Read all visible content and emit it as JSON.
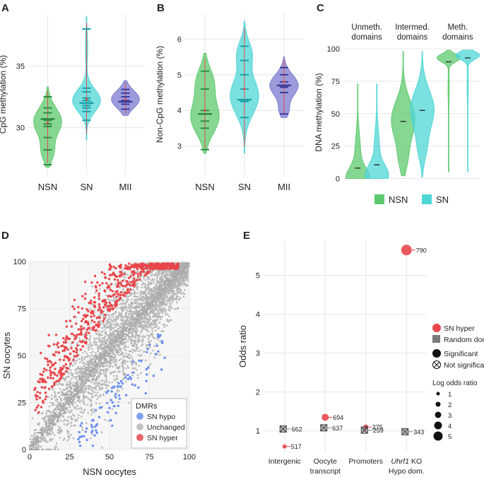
{
  "figure": {
    "description_note": ""
  },
  "chart_data": [
    {
      "panel": "A",
      "type": "violin",
      "ylabel": "CpG methylation (%)",
      "ylim": [
        26.2,
        39.2
      ],
      "yticks": [
        30,
        35
      ],
      "categories": [
        "NSN",
        "SN",
        "MII"
      ],
      "colors": [
        "#5ec96e",
        "#4fd6d6",
        "#7b7bd0"
      ],
      "medians": [
        30.7,
        32.0,
        32.1
      ],
      "means": [
        30.4,
        32.3,
        32.3
      ],
      "points": [
        [
          27.0,
          28.2,
          29.2,
          30.1,
          30.3,
          30.6,
          31.2,
          31.6,
          32.5
        ],
        [
          30.6,
          31.3,
          31.6,
          31.8,
          32.2,
          32.4,
          32.9,
          33.2,
          38.0
        ],
        [
          31.5,
          31.9,
          32.2,
          32.5,
          32.8,
          33.1
        ]
      ],
      "violin_range": [
        [
          26.8,
          33.3
        ],
        [
          29.0,
          39.0
        ],
        [
          31.0,
          33.8
        ]
      ]
    },
    {
      "panel": "B",
      "type": "violin",
      "ylabel": "Non-CpG methylation (%)",
      "ylim": [
        2.2,
        6.7
      ],
      "yticks": [
        3,
        4,
        5,
        6
      ],
      "categories": [
        "NSN",
        "SN",
        "MII"
      ],
      "colors": [
        "#5ec96e",
        "#4fd6d6",
        "#7b7bd0"
      ],
      "medians": [
        3.9,
        4.3,
        4.7
      ],
      "means": [
        4.0,
        4.6,
        4.8
      ],
      "points": [
        [
          2.9,
          3.5,
          3.7,
          3.9,
          4.0,
          4.6,
          5.1
        ],
        [
          3.8,
          4.25,
          4.3,
          4.6,
          5.0,
          5.4,
          5.8
        ],
        [
          3.9,
          4.5,
          4.65,
          4.65,
          4.7,
          4.8,
          5.0,
          5.2
        ]
      ],
      "violin_range": [
        [
          2.8,
          5.6
        ],
        [
          2.8,
          6.5
        ],
        [
          3.8,
          5.5
        ]
      ]
    },
    {
      "panel": "C",
      "type": "violin",
      "ylabel": "DNA methylation (%)",
      "ylim": [
        -3,
        105
      ],
      "yticks": [
        0,
        25,
        50,
        75,
        100
      ],
      "groups": [
        "Unmeth.\ndomains",
        "Intermed.\ndomains",
        "Meth.\ndomains"
      ],
      "series": [
        {
          "name": "NSN",
          "color": "#5ec96e",
          "medians": [
            8,
            44,
            90
          ]
        },
        {
          "name": "SN",
          "color": "#4fd6d6",
          "medians": [
            10.5,
            52.5,
            93
          ]
        }
      ],
      "legend": [
        "NSN",
        "SN"
      ]
    },
    {
      "panel": "D",
      "type": "scatter",
      "xlabel": "NSN oocytes",
      "ylabel": "SN oocytes",
      "xlim": [
        0,
        100
      ],
      "ylim": [
        0,
        100
      ],
      "xticks": [
        0,
        25,
        50,
        75,
        100
      ],
      "yticks": [
        0,
        25,
        50,
        75,
        100
      ],
      "legend_title": "DMRs",
      "legend": [
        {
          "name": "SN hypo",
          "color": "#6b8ff0"
        },
        {
          "name": "Unchanged",
          "color": "#b8b8b8"
        },
        {
          "name": "SN hyper",
          "color": "#e8474b"
        }
      ],
      "counts": {
        "unchanged": 3200,
        "hyper": 650,
        "hypo": 90
      }
    },
    {
      "panel": "E",
      "type": "dot",
      "ylabel": "Odds ratio",
      "ylim": [
        0.45,
        5.9
      ],
      "yticks": [
        1,
        2,
        3,
        4,
        5
      ],
      "categories": [
        "Intergenic",
        "Oocyte\ntranscript",
        "Promoters",
        "Uhrf1 KO\nHypo dom."
      ],
      "series": [
        {
          "name": "SN hyper",
          "color": "#e8474b",
          "values": [
            0.6,
            1.35,
            1.1,
            5.65
          ],
          "labels": [
            "517",
            "694",
            "275",
            "790"
          ],
          "significant": [
            true,
            true,
            false,
            true
          ],
          "log_odds": [
            1.2,
            1.4,
            1.3,
            5
          ]
        },
        {
          "name": "Random dom.",
          "color": "#7a7a7a",
          "values": [
            1.05,
            1.08,
            1.02,
            0.98
          ],
          "labels": [
            "662",
            "637",
            "259",
            "343"
          ],
          "significant": [
            false,
            false,
            false,
            false
          ],
          "log_odds": [
            1.5,
            1.5,
            1.3,
            1.3
          ]
        }
      ],
      "legend_items": [
        "SN hyper",
        "Random dom.",
        "Significant",
        "Not significant"
      ],
      "size_legend_title": "Log odds ratio",
      "size_legend": [
        "1",
        "2",
        "3",
        "4",
        "5"
      ]
    }
  ],
  "panel_letters": [
    "A",
    "B",
    "C",
    "D",
    "E"
  ],
  "c_strip_top": [
    "Unmeth.",
    "Intermed.",
    "Meth."
  ],
  "c_strip_bottom": [
    "domains",
    "domains",
    "domains"
  ],
  "e_ticklabel_line2": [
    "",
    "transcript",
    "",
    "Hypo dom."
  ],
  "e_ticklabel_line1": [
    "Intergenic",
    "Oocyte",
    "Promoters",
    "KO"
  ],
  "e_ticklabel_italic": [
    "",
    "",
    "",
    "Uhrf1"
  ]
}
